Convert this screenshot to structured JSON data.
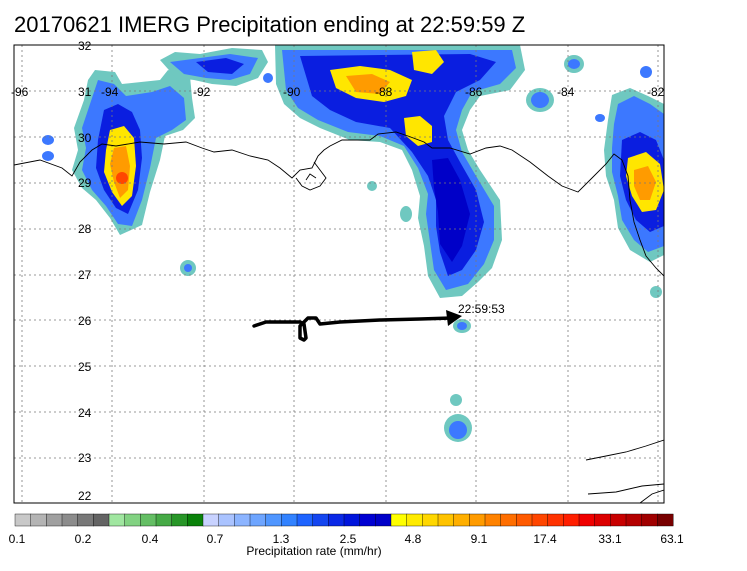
{
  "title": "20170621 IMERG Precipitation ending at 22:59:59 Z",
  "lon_labels": [
    "-96",
    "-94",
    "-92",
    "-90",
    "-88",
    "-86",
    "-84",
    "-82"
  ],
  "lat_labels": [
    "32",
    "31",
    "30",
    "29",
    "28",
    "27",
    "26",
    "25",
    "24",
    "23",
    "22"
  ],
  "track_time_label": "22:59:53",
  "colorbar": {
    "title": "Precipitation rate (mm/hr)",
    "tick_labels": [
      "0.1",
      "0.2",
      "0.4",
      "0.7",
      "1.3",
      "2.5",
      "4.8",
      "9.1",
      "17.4",
      "33.1",
      "63.1"
    ],
    "colors": [
      "#c8c8c8",
      "#b4b4b4",
      "#a0a0a0",
      "#8c8c8c",
      "#787878",
      "#646464",
      "#a0e6a0",
      "#82d282",
      "#64be64",
      "#46aa46",
      "#289628",
      "#0a820a",
      "#c8d2ff",
      "#aac3ff",
      "#8cb4ff",
      "#6ea5ff",
      "#5096ff",
      "#3282ff",
      "#1e64ff",
      "#1446f0",
      "#0a28e6",
      "#0014dc",
      "#0000d2",
      "#0000c8",
      "#ffff00",
      "#ffeb00",
      "#ffd700",
      "#ffc300",
      "#ffaf00",
      "#ff9b00",
      "#ff8200",
      "#ff6e00",
      "#ff5a00",
      "#ff4600",
      "#ff3200",
      "#ff1e00",
      "#f00000",
      "#dc0000",
      "#c80000",
      "#b40000",
      "#a00000",
      "#780000"
    ]
  },
  "precip_colors": {
    "edge": "#6fc8c0",
    "light": "#3c78ff",
    "moderate": "#0a1ee0",
    "heavy_blue": "#0000c8",
    "yellow": "#ffe600",
    "orange": "#ff9b00",
    "red": "#ff4600"
  }
}
